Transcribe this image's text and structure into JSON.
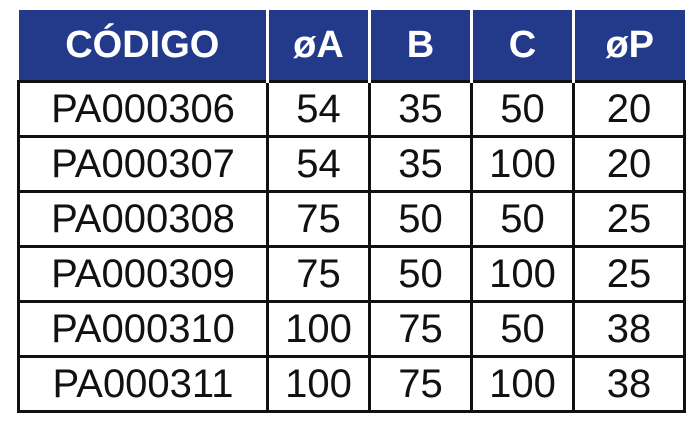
{
  "table": {
    "headers": [
      "CÓDIGO",
      "øA",
      "B",
      "C",
      "øP"
    ],
    "header_color": "#233a8b",
    "rows": [
      [
        "PA000306",
        "54",
        "35",
        "50",
        "20"
      ],
      [
        "PA000307",
        "54",
        "35",
        "100",
        "20"
      ],
      [
        "PA000308",
        "75",
        "50",
        "50",
        "25"
      ],
      [
        "PA000309",
        "75",
        "50",
        "100",
        "25"
      ],
      [
        "PA000310",
        "100",
        "75",
        "50",
        "38"
      ],
      [
        "PA000311",
        "100",
        "75",
        "100",
        "38"
      ]
    ]
  }
}
